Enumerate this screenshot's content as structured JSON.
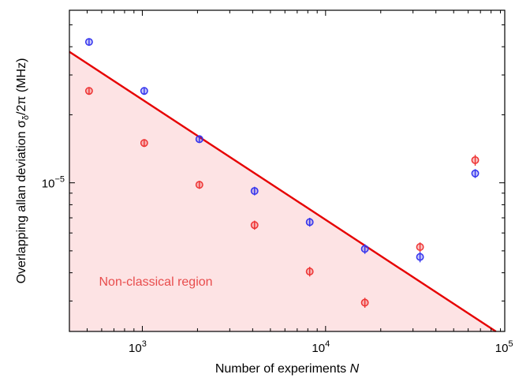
{
  "chart_data": {
    "type": "scatter",
    "xlabel_main": "Number of experiments ",
    "xlabel_var": "N",
    "ylabel_main": "Overlapping allan deviation σ",
    "ylabel_sub": "δ",
    "ylabel_rest": "/2π (MHz)",
    "x_scale": "log",
    "y_scale": "log",
    "xlim": [
      400,
      95000
    ],
    "ylim": [
      2.2e-06,
      5.8e-05
    ],
    "x_ticks": [
      {
        "value": 1000,
        "base": "10",
        "exp": "3"
      },
      {
        "value": 10000,
        "base": "10",
        "exp": "4"
      },
      {
        "value": 100000,
        "base": "10",
        "exp": "5"
      }
    ],
    "y_ticks": [
      {
        "value": 1e-05,
        "base": "10",
        "exp": "−5"
      }
    ],
    "grid": false,
    "series": [
      {
        "color": "#3333ee",
        "x": [
          512,
          1024,
          2048,
          4096,
          8192,
          16384,
          32768,
          65536
        ],
        "y": [
          4.2e-05,
          2.55e-05,
          1.56e-05,
          9.2e-06,
          6.7e-06,
          5.1e-06,
          4.7e-06,
          1.1e-05
        ],
        "err": [
          1.5e-06,
          1e-06,
          6e-07,
          4e-07,
          3e-07,
          2.5e-07,
          2.5e-07,
          5e-07
        ]
      },
      {
        "color": "#ee3333",
        "x": [
          512,
          1024,
          2048,
          4096,
          8192,
          16384,
          32768,
          65536
        ],
        "y": [
          2.55e-05,
          1.5e-05,
          9.8e-06,
          6.5e-06,
          4.05e-06,
          2.95e-06,
          5.2e-06,
          1.26e-05
        ],
        "err": [
          1e-06,
          6e-07,
          4e-07,
          3e-07,
          2e-07,
          1.5e-07,
          2.5e-07,
          7e-07
        ]
      }
    ],
    "classical_limit": {
      "color": "#e60000",
      "fill": "#fde3e4",
      "x": [
        400,
        85000
      ],
      "y": [
        3.8e-05,
        2.2e-06
      ]
    },
    "annotation": {
      "text": "Non-classical region",
      "color": "#e84c4c",
      "x": 580,
      "y": 3.5e-06
    }
  }
}
